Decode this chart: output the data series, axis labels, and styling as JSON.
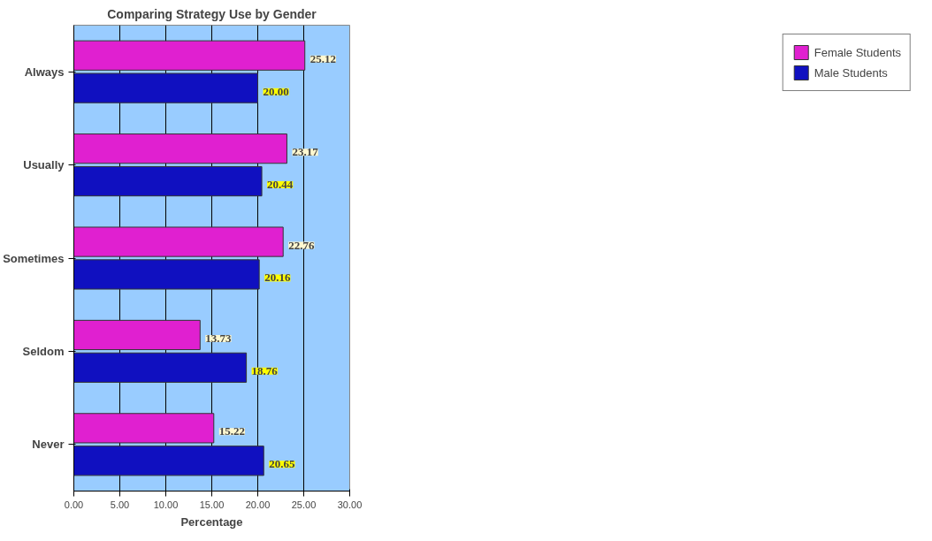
{
  "chart_data": {
    "type": "bar",
    "orientation": "horizontal",
    "title": "Comparing Strategy Use by Gender",
    "xlabel": "Percentage",
    "categories": [
      "Always",
      "Usually",
      "Sometimes",
      "Seldom",
      "Never"
    ],
    "series": [
      {
        "name": "Female Students",
        "color": "#e020d0",
        "values": [
          25.12,
          23.17,
          22.76,
          13.73,
          15.22
        ],
        "value_labels": [
          "25.12",
          "23.17",
          "22.76",
          "13.73",
          "15.22"
        ]
      },
      {
        "name": "Male Students",
        "color": "#1010c0",
        "values": [
          20.0,
          20.44,
          20.16,
          18.76,
          20.65
        ],
        "value_labels": [
          "20.00",
          "20.44",
          "20.16",
          "18.76",
          "20.65"
        ]
      }
    ],
    "xlim": [
      0,
      30
    ],
    "xticks": [
      {
        "value": 0,
        "label": "0.00"
      },
      {
        "value": 5,
        "label": "5.00"
      },
      {
        "value": 10,
        "label": "10.00"
      },
      {
        "value": 15,
        "label": "15.00"
      },
      {
        "value": 20,
        "label": "20.00"
      },
      {
        "value": 25,
        "label": "25.00"
      },
      {
        "value": 30,
        "label": "30.00"
      }
    ],
    "grid": "x",
    "legend": "right"
  }
}
